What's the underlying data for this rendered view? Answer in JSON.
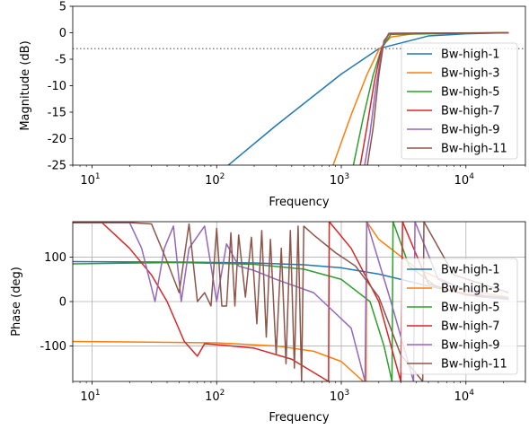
{
  "chart_data": [
    {
      "type": "line",
      "xlabel": "Frequency",
      "ylabel": "Magnitude (dB)",
      "xscale": "log",
      "xlim": [
        7,
        30000
      ],
      "ylim": [
        -25,
        5
      ],
      "yticks": [
        5,
        0,
        -5,
        -10,
        -15,
        -20,
        -25
      ],
      "xticks": [
        {
          "base": "10",
          "exp": "1"
        },
        {
          "base": "10",
          "exp": "2"
        },
        {
          "base": "10",
          "exp": "3"
        },
        {
          "base": "10",
          "exp": "4"
        }
      ],
      "grid": false,
      "legend_position": "right",
      "reference_line": {
        "y": -3,
        "style": "dotted",
        "color": "#808080"
      },
      "series": [
        {
          "name": "Bw-high-1",
          "color": "#1f77b4",
          "x": [
            124,
            300,
            1000,
            2000,
            5000,
            10000,
            22000
          ],
          "y": [
            -25,
            -17.5,
            -7.8,
            -3.0,
            -0.6,
            -0.2,
            0
          ]
        },
        {
          "name": "Bw-high-3",
          "color": "#ff7f0e",
          "x": [
            860,
            1200,
            1600,
            2000,
            2500,
            4000,
            22000
          ],
          "y": [
            -25,
            -15.5,
            -8.0,
            -3.2,
            -0.8,
            -0.1,
            0
          ]
        },
        {
          "name": "Bw-high-5",
          "color": "#2ca02c",
          "x": [
            1250,
            1500,
            1800,
            2100,
            2500,
            22000
          ],
          "y": [
            -25,
            -16,
            -8,
            -3,
            -0.3,
            0
          ]
        },
        {
          "name": "Bw-high-7",
          "color": "#d62728",
          "x": [
            1420,
            1600,
            1850,
            2100,
            2400,
            22000
          ],
          "y": [
            -25,
            -18,
            -9,
            -3,
            -0.2,
            0
          ]
        },
        {
          "name": "Bw-high-9",
          "color": "#9467bd",
          "x": [
            1540,
            1700,
            1900,
            2150,
            2400,
            22000
          ],
          "y": [
            -25,
            -19,
            -10,
            -2.5,
            -0.1,
            0
          ]
        },
        {
          "name": "Bw-high-11",
          "color": "#8c564b",
          "x": [
            1620,
            1800,
            2000,
            2200,
            2450,
            22000
          ],
          "y": [
            -25,
            -18,
            -8,
            -1.5,
            -0.1,
            0
          ]
        }
      ]
    },
    {
      "type": "line",
      "xlabel": "Frequency",
      "ylabel": "Phase (deg)",
      "xscale": "log",
      "xlim": [
        7,
        30000
      ],
      "ylim": [
        -180,
        180
      ],
      "yticks": [
        100,
        0,
        -100
      ],
      "xticks": [
        {
          "base": "10",
          "exp": "1"
        },
        {
          "base": "10",
          "exp": "2"
        },
        {
          "base": "10",
          "exp": "3"
        },
        {
          "base": "10",
          "exp": "4"
        }
      ],
      "grid": true,
      "legend_position": "lower right",
      "series": [
        {
          "name": "Bw-high-1",
          "color": "#1f77b4",
          "x": [
            7,
            50,
            200,
            500,
            1000,
            2000,
            5000,
            10000,
            22000
          ],
          "y": [
            90,
            89,
            87,
            83,
            76,
            62,
            35,
            17,
            8
          ]
        },
        {
          "name": "Bw-high-3",
          "color": "#ff7f0e",
          "x": [
            7,
            100,
            300,
            600,
            1000,
            1500,
            1580,
            1600,
            2000,
            4000,
            10000,
            22000
          ],
          "y": [
            -90,
            -93,
            -100,
            -112,
            -135,
            -180,
            -180,
            180,
            140,
            75,
            25,
            10
          ]
        },
        {
          "name": "Bw-high-5",
          "color": "#2ca02c",
          "x": [
            7,
            50,
            200,
            500,
            1000,
            1700,
            2200,
            2550,
            2600,
            3500,
            6000,
            12000,
            22000
          ],
          "y": [
            85,
            88,
            84,
            73,
            50,
            0,
            -100,
            -180,
            180,
            80,
            30,
            12,
            5
          ]
        },
        {
          "name": "Bw-high-7",
          "color": "#d62728",
          "x": [
            7,
            12,
            20,
            30,
            40,
            55,
            70,
            80,
            100,
            200,
            400,
            790,
            800,
            1200,
            2000,
            3000,
            3100,
            5000,
            10000,
            22000
          ],
          "y": [
            178,
            178,
            120,
            60,
            0,
            -90,
            -123,
            -95,
            -97,
            -105,
            -130,
            -180,
            180,
            120,
            0,
            -180,
            180,
            40,
            15,
            5
          ]
        },
        {
          "name": "Bw-high-9",
          "color": "#9467bd",
          "x": [
            7,
            20,
            25,
            32,
            38,
            45,
            52,
            60,
            80,
            100,
            120,
            150,
            200,
            300,
            600,
            1200,
            1550,
            1600,
            2500,
            3800,
            3900,
            6000,
            15000,
            22000
          ],
          "y": [
            178,
            178,
            120,
            0,
            120,
            170,
            0,
            120,
            170,
            0,
            130,
            80,
            70,
            50,
            20,
            -60,
            -180,
            180,
            0,
            -180,
            180,
            50,
            10,
            5
          ]
        },
        {
          "name": "Bw-high-11",
          "color": "#8c564b",
          "x": [
            7,
            20,
            30,
            40,
            50,
            60,
            70,
            80,
            90,
            100,
            110,
            120,
            130,
            140,
            150,
            170,
            190,
            210,
            230,
            250,
            270,
            300,
            330,
            360,
            390,
            420,
            450,
            480,
            500,
            600,
            900,
            1300,
            2000,
            3000,
            4500,
            4600,
            8000,
            22000
          ],
          "y": [
            178,
            178,
            175,
            90,
            20,
            175,
            0,
            20,
            -10,
            165,
            -10,
            -10,
            155,
            -10,
            150,
            10,
            145,
            -50,
            160,
            -80,
            140,
            -120,
            120,
            -140,
            160,
            -150,
            170,
            -180,
            170,
            150,
            110,
            80,
            10,
            -120,
            -180,
            180,
            60,
            20
          ]
        }
      ]
    }
  ]
}
